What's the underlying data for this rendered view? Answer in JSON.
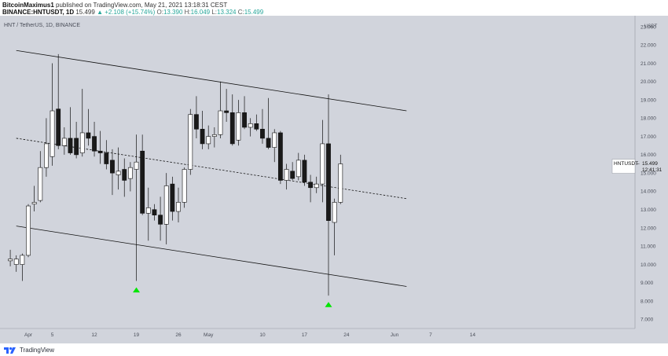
{
  "header": {
    "author": "BitcoinMaximus1",
    "published": "published on TradingView.com, May 21, 2021 13:18:31 CEST",
    "symbol_full": "BINANCE:HNTUSDT, 1D",
    "last": "15.499",
    "change": "▲ +2.108 (+15.74%)",
    "o_label": "O:",
    "o": "13.390",
    "h_label": "H:",
    "h": "16.049",
    "l_label": "L:",
    "l": "13.324",
    "c_label": "C:",
    "c": "15.499"
  },
  "chart_data": {
    "type": "candlestick",
    "title": "HNT / TetherUS, 1D, BINANCE",
    "y_unit": "USDT",
    "ylim": [
      6.5,
      23.6
    ],
    "yticks": [
      7,
      8,
      9,
      10,
      11,
      12,
      13,
      14,
      15,
      16,
      17,
      18,
      19,
      20,
      21,
      22,
      23
    ],
    "ytick_labels": [
      "7.000",
      "8.000",
      "9.000",
      "10.000",
      "11.000",
      "12.000",
      "13.000",
      "14.000",
      "15.000",
      "16.000",
      "17.000",
      "18.000",
      "19.000",
      "20.000",
      "21.000",
      "22.000",
      "23.000"
    ],
    "x_labels": [
      {
        "label": "Apr",
        "day": 0
      },
      {
        "label": "5",
        "day": 4
      },
      {
        "label": "12",
        "day": 11
      },
      {
        "label": "19",
        "day": 18
      },
      {
        "label": "26",
        "day": 25
      },
      {
        "label": "May",
        "day": 30
      },
      {
        "label": "10",
        "day": 39
      },
      {
        "label": "17",
        "day": 46
      },
      {
        "label": "24",
        "day": 53
      },
      {
        "label": "Jun",
        "day": 61
      },
      {
        "label": "7",
        "day": 67
      },
      {
        "label": "14",
        "day": 74
      }
    ],
    "candles": [
      {
        "day": -3,
        "o": 10.2,
        "h": 10.8,
        "l": 9.9,
        "c": 10.3
      },
      {
        "day": -2,
        "o": 10.0,
        "h": 10.5,
        "l": 9.6,
        "c": 10.3
      },
      {
        "day": -1,
        "o": 10.0,
        "h": 10.6,
        "l": 9.1,
        "c": 10.5
      },
      {
        "day": 0,
        "o": 10.5,
        "h": 13.3,
        "l": 10.4,
        "c": 13.2
      },
      {
        "day": 1,
        "o": 13.3,
        "h": 14.3,
        "l": 12.9,
        "c": 13.4
      },
      {
        "day": 2,
        "o": 13.5,
        "h": 16.2,
        "l": 13.4,
        "c": 15.3
      },
      {
        "day": 3,
        "o": 15.3,
        "h": 18.0,
        "l": 14.8,
        "c": 16.6
      },
      {
        "day": 4,
        "o": 15.9,
        "h": 21.0,
        "l": 15.4,
        "c": 18.4
      },
      {
        "day": 5,
        "o": 18.5,
        "h": 21.5,
        "l": 16.3,
        "c": 16.5
      },
      {
        "day": 6,
        "o": 16.5,
        "h": 17.5,
        "l": 16.0,
        "c": 16.9
      },
      {
        "day": 7,
        "o": 16.9,
        "h": 18.6,
        "l": 16.0,
        "c": 16.1
      },
      {
        "day": 8,
        "o": 16.9,
        "h": 17.8,
        "l": 15.8,
        "c": 16.0
      },
      {
        "day": 9,
        "o": 16.1,
        "h": 19.6,
        "l": 15.9,
        "c": 17.2
      },
      {
        "day": 10,
        "o": 17.2,
        "h": 18.5,
        "l": 16.5,
        "c": 16.9
      },
      {
        "day": 11,
        "o": 17.0,
        "h": 17.8,
        "l": 15.9,
        "c": 16.2
      },
      {
        "day": 12,
        "o": 16.2,
        "h": 17.3,
        "l": 15.5,
        "c": 16.1
      },
      {
        "day": 13,
        "o": 16.1,
        "h": 16.8,
        "l": 15.2,
        "c": 15.5
      },
      {
        "day": 14,
        "o": 15.7,
        "h": 16.3,
        "l": 13.8,
        "c": 15.0
      },
      {
        "day": 15,
        "o": 14.9,
        "h": 16.4,
        "l": 14.1,
        "c": 15.1
      },
      {
        "day": 16,
        "o": 15.2,
        "h": 15.8,
        "l": 13.7,
        "c": 14.6
      },
      {
        "day": 17,
        "o": 14.7,
        "h": 15.6,
        "l": 14.0,
        "c": 15.3
      },
      {
        "day": 18,
        "o": 15.2,
        "h": 17.1,
        "l": 9.1,
        "c": 15.6
      },
      {
        "day": 19,
        "o": 16.2,
        "h": 17.1,
        "l": 12.7,
        "c": 12.8
      },
      {
        "day": 20,
        "o": 12.8,
        "h": 14.2,
        "l": 11.3,
        "c": 13.1
      },
      {
        "day": 21,
        "o": 13.0,
        "h": 13.3,
        "l": 12.4,
        "c": 12.7
      },
      {
        "day": 22,
        "o": 12.7,
        "h": 13.7,
        "l": 11.3,
        "c": 12.2
      },
      {
        "day": 23,
        "o": 12.2,
        "h": 15.0,
        "l": 11.1,
        "c": 14.3
      },
      {
        "day": 24,
        "o": 14.4,
        "h": 14.8,
        "l": 12.4,
        "c": 12.9
      },
      {
        "day": 25,
        "o": 12.9,
        "h": 14.2,
        "l": 12.3,
        "c": 13.4
      },
      {
        "day": 26,
        "o": 13.4,
        "h": 15.3,
        "l": 13.1,
        "c": 15.2
      },
      {
        "day": 27,
        "o": 15.2,
        "h": 18.5,
        "l": 14.9,
        "c": 18.2
      },
      {
        "day": 28,
        "o": 18.2,
        "h": 19.2,
        "l": 16.9,
        "c": 17.4
      },
      {
        "day": 29,
        "o": 17.4,
        "h": 18.4,
        "l": 16.3,
        "c": 16.6
      },
      {
        "day": 30,
        "o": 16.6,
        "h": 17.6,
        "l": 16.3,
        "c": 17.0
      },
      {
        "day": 31,
        "o": 17.0,
        "h": 17.5,
        "l": 16.4,
        "c": 17.1
      },
      {
        "day": 32,
        "o": 17.1,
        "h": 20.0,
        "l": 16.9,
        "c": 18.4
      },
      {
        "day": 33,
        "o": 18.4,
        "h": 19.6,
        "l": 17.8,
        "c": 18.3
      },
      {
        "day": 34,
        "o": 18.3,
        "h": 19.3,
        "l": 16.5,
        "c": 16.6
      },
      {
        "day": 35,
        "o": 16.8,
        "h": 19.0,
        "l": 16.5,
        "c": 18.3
      },
      {
        "day": 36,
        "o": 18.3,
        "h": 19.2,
        "l": 17.4,
        "c": 17.5
      },
      {
        "day": 37,
        "o": 17.5,
        "h": 18.0,
        "l": 17.0,
        "c": 17.7
      },
      {
        "day": 38,
        "o": 17.7,
        "h": 18.2,
        "l": 17.3,
        "c": 17.4
      },
      {
        "day": 39,
        "o": 17.4,
        "h": 18.5,
        "l": 16.6,
        "c": 16.9
      },
      {
        "day": 40,
        "o": 16.9,
        "h": 19.1,
        "l": 16.3,
        "c": 16.4
      },
      {
        "day": 41,
        "o": 16.4,
        "h": 17.4,
        "l": 15.6,
        "c": 17.2
      },
      {
        "day": 42,
        "o": 17.2,
        "h": 17.3,
        "l": 14.4,
        "c": 14.6
      },
      {
        "day": 43,
        "o": 14.6,
        "h": 15.5,
        "l": 14.1,
        "c": 15.2
      },
      {
        "day": 44,
        "o": 15.1,
        "h": 15.6,
        "l": 14.6,
        "c": 14.7
      },
      {
        "day": 45,
        "o": 14.8,
        "h": 16.1,
        "l": 14.6,
        "c": 15.7
      },
      {
        "day": 46,
        "o": 15.7,
        "h": 16.0,
        "l": 14.3,
        "c": 14.5
      },
      {
        "day": 47,
        "o": 14.5,
        "h": 14.9,
        "l": 13.4,
        "c": 14.2
      },
      {
        "day": 48,
        "o": 14.2,
        "h": 14.8,
        "l": 13.9,
        "c": 14.4
      },
      {
        "day": 49,
        "o": 14.4,
        "h": 17.9,
        "l": 13.4,
        "c": 16.6
      },
      {
        "day": 50,
        "o": 16.6,
        "h": 19.3,
        "l": 8.3,
        "c": 12.4
      },
      {
        "day": 51,
        "o": 12.3,
        "h": 13.6,
        "l": 10.5,
        "c": 13.4
      },
      {
        "day": 52,
        "o": 13.4,
        "h": 16.0,
        "l": 13.3,
        "c": 15.5
      }
    ],
    "channel": {
      "upper": [
        [
          -2,
          21.7
        ],
        [
          63,
          18.4
        ]
      ],
      "middle": [
        [
          -2,
          16.9
        ],
        [
          63,
          13.6
        ]
      ],
      "lower": [
        [
          -2,
          12.1
        ],
        [
          63,
          8.8
        ]
      ]
    },
    "markers": [
      {
        "day": 18,
        "y": 8.6,
        "shape": "triangle-up",
        "color": "#00e600"
      },
      {
        "day": 50,
        "y": 7.8,
        "shape": "triangle-up",
        "color": "#00e600"
      }
    ],
    "price_label": {
      "symbol": "HNTUSDT",
      "value": "15.499",
      "countdown": "12:41:31",
      "y": 15.499
    },
    "colors": {
      "background": "#d1d4dc",
      "up_body": "#ffffff",
      "down_body": "#1a1a1a",
      "wick": "#111111",
      "line": "#111111",
      "grid": "none"
    }
  },
  "footer": {
    "brand": "TradingView"
  }
}
